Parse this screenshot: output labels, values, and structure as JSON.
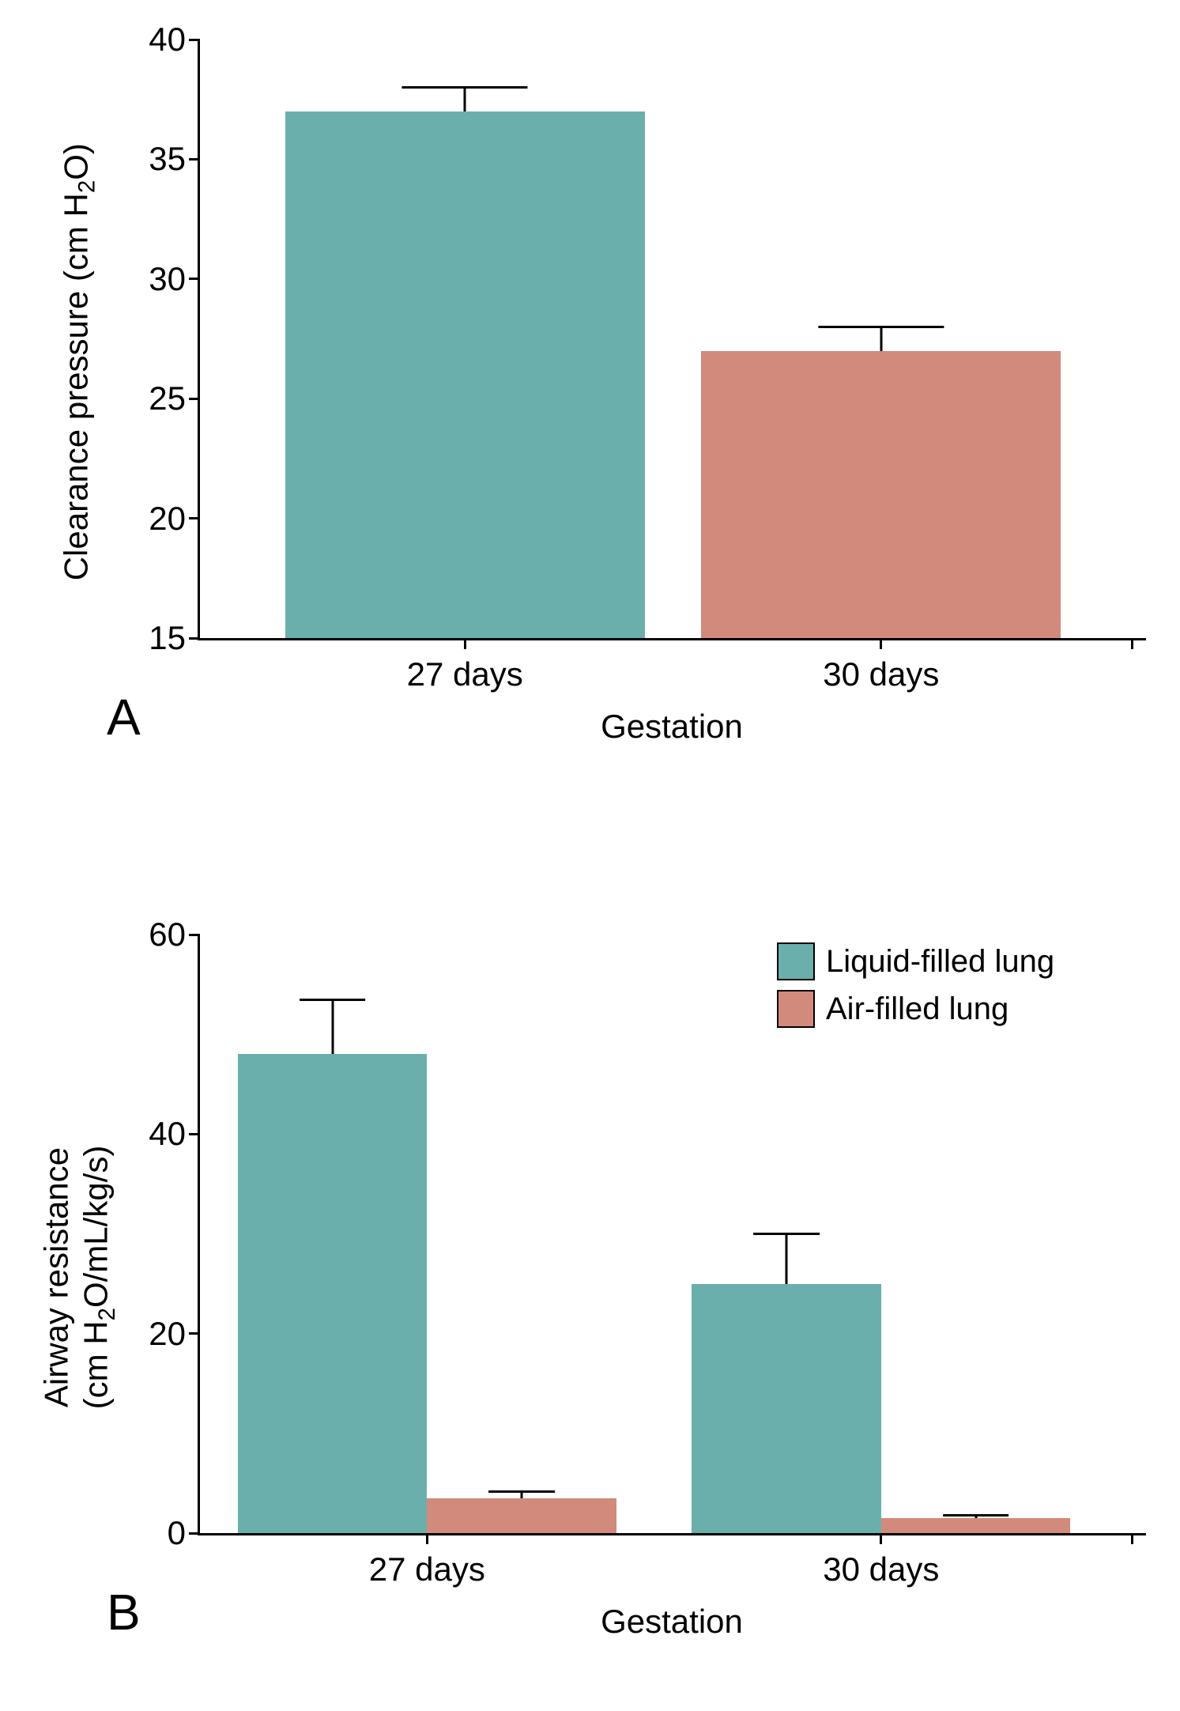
{
  "colors": {
    "teal": "#6bafac",
    "salmon": "#d18a7b",
    "axis": "#000000",
    "background": "#ffffff"
  },
  "panelA": {
    "letter": "A",
    "ylabel_plain": "Clearance pressure (cm H2O)",
    "xlabel": "Gestation",
    "categories": [
      "27 days",
      "30 days"
    ],
    "values": [
      37,
      27
    ],
    "errors": [
      1.0,
      1.0
    ],
    "bar_color": [
      "teal",
      "salmon"
    ],
    "ylim": [
      15,
      40
    ],
    "yticks": [
      15,
      20,
      25,
      30,
      35,
      40
    ],
    "bar_width_rel": 0.38
  },
  "panelB": {
    "letter": "B",
    "ylabel_line1": "Airway resistance",
    "ylabel_line2_plain": "(cm H2O/mL/kg/s)",
    "xlabel": "Gestation",
    "categories": [
      "27 days",
      "30 days"
    ],
    "series": [
      {
        "name": "Liquid-filled lung",
        "color": "teal",
        "values": [
          48,
          25
        ],
        "errors": [
          5.5,
          5.0
        ]
      },
      {
        "name": "Air-filled lung",
        "color": "salmon",
        "values": [
          3.5,
          1.5
        ],
        "errors": [
          0.7,
          0.3
        ]
      }
    ],
    "ylim": [
      0,
      60
    ],
    "yticks": [
      0,
      20,
      40,
      60
    ],
    "bar_width_rel": 0.2
  },
  "legend": {
    "items": [
      {
        "label": "Liquid-filled lung",
        "color": "teal"
      },
      {
        "label": "Air-filled lung",
        "color": "salmon"
      }
    ]
  }
}
